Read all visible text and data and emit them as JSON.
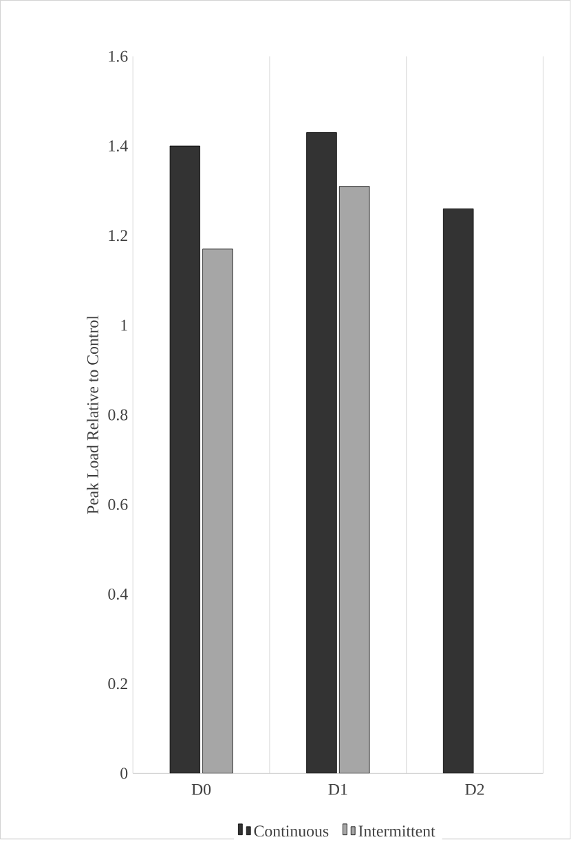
{
  "chart_data": {
    "type": "bar",
    "ylabel": "Peak Load Relative to Control",
    "categories": [
      "D0",
      "D1",
      "D2"
    ],
    "series": [
      {
        "name": "Continuous",
        "color": "#333333",
        "values": [
          1.4,
          1.43,
          1.26
        ]
      },
      {
        "name": "Intermittent",
        "color": "#a6a6a6",
        "values": [
          1.17,
          1.31,
          null
        ]
      }
    ],
    "ylim": [
      0,
      1.6
    ],
    "yticks": [
      0,
      0.2,
      0.4,
      0.6,
      0.8,
      1,
      1.2,
      1.4,
      1.6
    ],
    "grid": "x",
    "legend": "bottom"
  }
}
